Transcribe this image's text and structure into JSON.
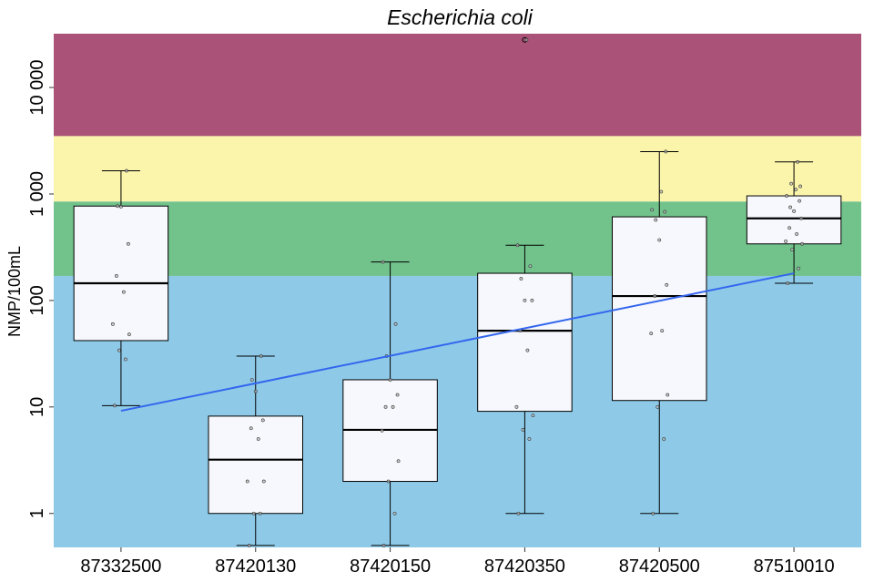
{
  "chart_data": {
    "type": "boxplot",
    "title": "Escherichia coli",
    "xlabel": "",
    "ylabel": "NMP/100mL",
    "y_scale": "log10",
    "ylim": [
      0.48,
      32000
    ],
    "yticks": [
      {
        "value": 1,
        "label": "1"
      },
      {
        "value": 10,
        "label": "10"
      },
      {
        "value": 100,
        "label": "100"
      },
      {
        "value": 1000,
        "label": "1 000"
      },
      {
        "value": 10000,
        "label": "10 000"
      }
    ],
    "categories": [
      "87332500",
      "87420130",
      "87420150",
      "87420350",
      "87420500",
      "87510010"
    ],
    "quality_bands": [
      {
        "from": 0.48,
        "to": 170,
        "color": "#8ECAE8"
      },
      {
        "from": 170,
        "to": 850,
        "color": "#72C28C"
      },
      {
        "from": 850,
        "to": 3500,
        "color": "#FBF4AB"
      },
      {
        "from": 3500,
        "to": 32000,
        "color": "#AA5277"
      }
    ],
    "box_fill": "#F7F8FD",
    "trend_color": "#3366EE",
    "boxes": [
      {
        "category": "87332500",
        "whisker_low": 10.3,
        "q1": 42,
        "median": 145,
        "q3": 770,
        "whisker_high": 1650,
        "outliers": []
      },
      {
        "category": "87420130",
        "whisker_low": 0.5,
        "q1": 1,
        "median": 3.2,
        "q3": 8.2,
        "whisker_high": 30,
        "outliers": []
      },
      {
        "category": "87420150",
        "whisker_low": 0.5,
        "q1": 2,
        "median": 6.1,
        "q3": 18,
        "whisker_high": 230,
        "outliers": []
      },
      {
        "category": "87420350",
        "whisker_low": 1,
        "q1": 9.1,
        "median": 52,
        "q3": 180,
        "whisker_high": 330,
        "outliers": [
          28000
        ]
      },
      {
        "category": "87420500",
        "whisker_low": 1,
        "q1": 11.5,
        "median": 110,
        "q3": 610,
        "whisker_high": 2500,
        "outliers": []
      },
      {
        "category": "87510010",
        "whisker_low": 145,
        "q1": 340,
        "median": 590,
        "q3": 960,
        "whisker_high": 2000,
        "outliers": []
      }
    ],
    "points": [
      {
        "category": "87332500",
        "values": [
          10.3,
          28,
          34,
          48,
          60,
          120,
          170,
          340,
          760,
          770,
          1650
        ]
      },
      {
        "category": "87420130",
        "values": [
          0.5,
          1,
          1,
          2,
          2,
          5,
          6.3,
          7.5,
          14,
          18,
          30
        ]
      },
      {
        "category": "87420150",
        "values": [
          0.5,
          1,
          2,
          3.1,
          6,
          10,
          10,
          13,
          18,
          30,
          60,
          230
        ]
      },
      {
        "category": "87420350",
        "values": [
          1,
          5,
          6.1,
          8.3,
          10,
          34,
          52,
          100,
          100,
          160,
          210,
          330,
          28000
        ]
      },
      {
        "category": "87420500",
        "values": [
          1,
          5,
          10,
          13,
          49,
          52,
          110,
          140,
          370,
          570,
          680,
          710,
          1050,
          2500
        ]
      },
      {
        "category": "87510010",
        "values": [
          145,
          200,
          300,
          340,
          360,
          420,
          480,
          590,
          690,
          750,
          860,
          960,
          1100,
          1180,
          1250,
          2000
        ]
      }
    ],
    "trend_line": {
      "x": [
        1,
        6
      ],
      "y": [
        9.2,
        180
      ]
    }
  }
}
